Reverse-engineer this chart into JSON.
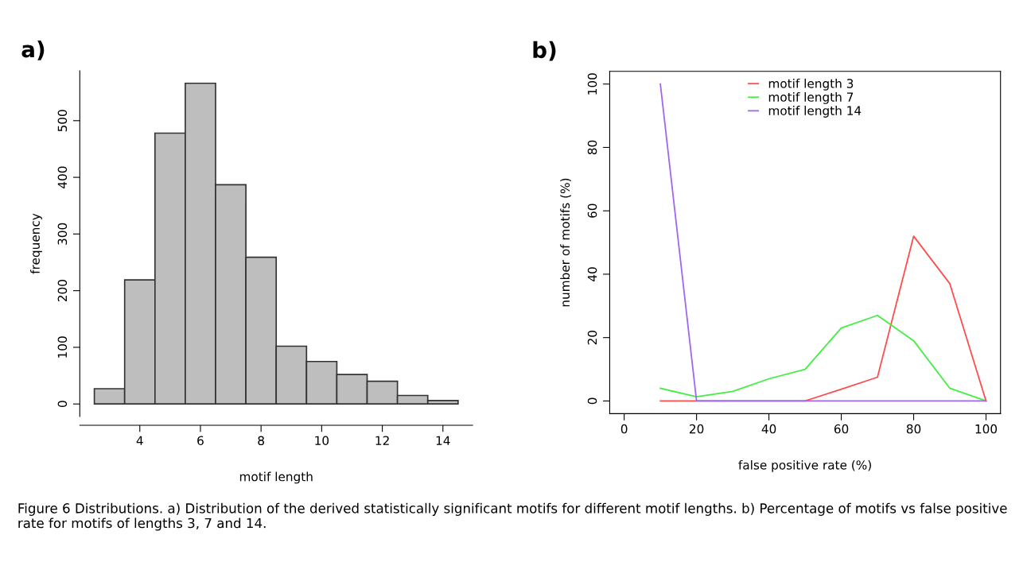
{
  "chart_data": [
    {
      "type": "histogram",
      "title": "a)",
      "xlabel": "motif length",
      "ylabel": "frequency",
      "color": "#bebebe",
      "bins": [
        2.5,
        3.5,
        4.5,
        5.5,
        6.5,
        7.5,
        8.5,
        9.5,
        10.5,
        11.5,
        12.5,
        13.5,
        14.5
      ],
      "values": [
        27,
        219,
        478,
        566,
        387,
        259,
        102,
        75,
        52,
        40,
        15,
        6
      ],
      "xlim": [
        2.02,
        14.98
      ],
      "xticks": [
        4,
        6,
        8,
        10,
        12,
        14
      ],
      "ylim": [
        -22,
        588
      ],
      "yticks": [
        0,
        100,
        200,
        300,
        400,
        500
      ],
      "grid": false,
      "annotations": [
        "Figure 6 Distributions. a) Distribution of the derived statistically significant motifs for different motif lengths. b) Percentage of motifs vs false positive rate for motifs of lengths 3, 7 and 14."
      ]
    },
    {
      "type": "line",
      "title": "b)",
      "xlabel": "false positive rate (%)",
      "ylabel": "number of motifs (%)",
      "x": [
        10,
        20,
        30,
        40,
        50,
        60,
        70,
        80,
        90,
        100
      ],
      "series": [
        {
          "name": "motif length 3",
          "color": "#ff4d4d",
          "values": [
            0,
            0,
            0,
            0,
            0,
            3.7,
            7.5,
            52,
            37,
            0
          ]
        },
        {
          "name": "motif length 7",
          "color": "#44ee44",
          "values": [
            4,
            1.3,
            3,
            7,
            10,
            23,
            27,
            19,
            4,
            0
          ]
        },
        {
          "name": "motif length 14",
          "color": "#a066ee",
          "values": [
            100,
            0,
            0,
            0,
            0,
            0,
            0,
            0,
            0,
            0
          ]
        }
      ],
      "xlim": [
        -4,
        104
      ],
      "xticks": [
        0,
        20,
        40,
        60,
        80,
        100
      ],
      "ylim": [
        -4,
        104
      ],
      "yticks": [
        0,
        20,
        40,
        60,
        80,
        100
      ],
      "legend": "top",
      "grid": false,
      "marker": "none",
      "line_style": "solid"
    }
  ]
}
